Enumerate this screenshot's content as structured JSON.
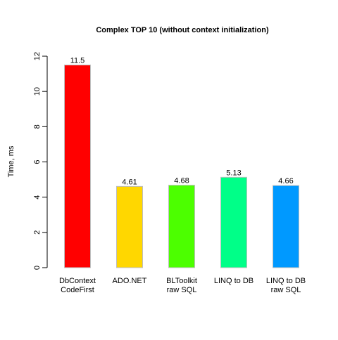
{
  "chart_data": {
    "type": "bar",
    "title": "Complex TOP 10 (without context initialization)",
    "xlabel": "",
    "ylabel": "Time, ms",
    "ylim": [
      0,
      12
    ],
    "yticks": [
      0,
      2,
      4,
      6,
      8,
      10,
      12
    ],
    "grid": false,
    "legend": "none",
    "categories": [
      [
        "DbContext",
        "CodeFirst"
      ],
      [
        "ADO.NET"
      ],
      [
        "BLToolkit",
        "raw SQL"
      ],
      [
        "LINQ to DB"
      ],
      [
        "LINQ to DB",
        "raw SQL"
      ]
    ],
    "values": [
      11.5,
      4.61,
      4.68,
      5.13,
      4.66
    ],
    "value_labels": [
      "11.5",
      "4.61",
      "4.68",
      "5.13",
      "4.66"
    ],
    "colors": [
      "#FF0000",
      "#FFD700",
      "#4CFF00",
      "#00FF88",
      "#0099FF"
    ]
  }
}
